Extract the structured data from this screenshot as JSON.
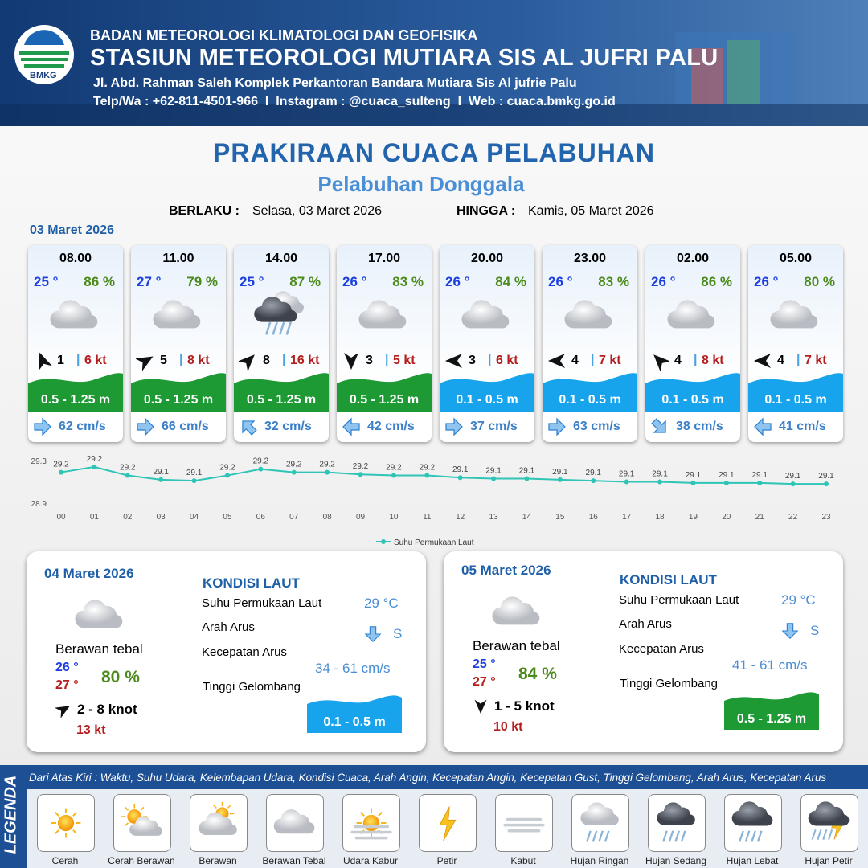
{
  "header": {
    "logo": "BMKG",
    "agency": "BADAN METEOROLOGI KLIMATOLOGI DAN GEOFISIKA",
    "station": "STASIUN METEOROLOGI MUTIARA SIS AL JUFRI PALU",
    "address": "Jl. Abd. Rahman Saleh Komplek Perkantoran Bandara Mutiara Sis Al jufrie Palu",
    "contact": "Telp/Wa : +62-811-4501-966  I  Instagram : @cuaca_sulteng  I  Web : cuaca.bmkg.go.id"
  },
  "title": "PRAKIRAAN CUACA PELABUHAN",
  "subtitle": "Pelabuhan Donggala",
  "validity": {
    "from_label": "BERLAKU :",
    "from": "Selasa, 03 Maret 2026",
    "until_label": "HINGGA :",
    "until": "Kamis, 05 Maret 2026"
  },
  "day1": {
    "date": "03 Maret 2026",
    "cards": [
      {
        "time": "08.00",
        "temp": "25 °",
        "humidity": "86 %",
        "wind": "1",
        "gust": "6 kt",
        "wave": "0.5 - 1.25 m",
        "wave_color": "#1e9a35",
        "current": "62 cm/s"
      },
      {
        "time": "11.00",
        "temp": "27 °",
        "humidity": "79 %",
        "wind": "5",
        "gust": "8 kt",
        "wave": "0.5 - 1.25 m",
        "wave_color": "#1e9a35",
        "current": "66 cm/s"
      },
      {
        "time": "14.00",
        "temp": "25 °",
        "humidity": "87 %",
        "wind": "8",
        "gust": "16 kt",
        "wave": "0.5 - 1.25 m",
        "wave_color": "#1e9a35",
        "current": "32 cm/s"
      },
      {
        "time": "17.00",
        "temp": "26 °",
        "humidity": "83 %",
        "wind": "3",
        "gust": "5 kt",
        "wave": "0.5 - 1.25 m",
        "wave_color": "#1e9a35",
        "current": "42 cm/s"
      },
      {
        "time": "20.00",
        "temp": "26 °",
        "humidity": "84 %",
        "wind": "3",
        "gust": "6 kt",
        "wave": "0.1 - 0.5 m",
        "wave_color": "#18a4ec",
        "current": "37 cm/s"
      },
      {
        "time": "23.00",
        "temp": "26 °",
        "humidity": "83 %",
        "wind": "4",
        "gust": "7 kt",
        "wave": "0.1 - 0.5 m",
        "wave_color": "#18a4ec",
        "current": "63 cm/s"
      },
      {
        "time": "02.00",
        "temp": "26 °",
        "humidity": "86 %",
        "wind": "4",
        "gust": "8 kt",
        "wave": "0.1 - 0.5 m",
        "wave_color": "#18a4ec",
        "current": "38 cm/s"
      },
      {
        "time": "05.00",
        "temp": "26 °",
        "humidity": "80 %",
        "wind": "4",
        "gust": "7 kt",
        "wave": "0.1 - 0.5 m",
        "wave_color": "#18a4ec",
        "current": "41 cm/s"
      }
    ]
  },
  "chart_data": {
    "type": "line",
    "categories": [
      "00",
      "01",
      "02",
      "03",
      "04",
      "05",
      "06",
      "07",
      "08",
      "09",
      "10",
      "11",
      "12",
      "13",
      "14",
      "15",
      "16",
      "17",
      "18",
      "19",
      "20",
      "21",
      "22",
      "23"
    ],
    "series": [
      {
        "name": "Suhu Permukaan Laut",
        "color": "#2ec4b6",
        "values": [
          29.19,
          29.24,
          29.16,
          29.12,
          29.11,
          29.16,
          29.22,
          29.19,
          29.19,
          29.17,
          29.16,
          29.16,
          29.14,
          29.13,
          29.13,
          29.12,
          29.11,
          29.1,
          29.1,
          29.09,
          29.09,
          29.09,
          29.08,
          29.08
        ],
        "value_labels": [
          "29.2",
          "29.2",
          "29.2",
          "29.1",
          "29.1",
          "29.2",
          "29.2",
          "29.2",
          "29.2",
          "29.2",
          "29.2",
          "29.2",
          "29.1",
          "29.1",
          "29.1",
          "29.1",
          "29.1",
          "29.1",
          "29.1",
          "29.1",
          "29.1",
          "29.1",
          "29.1",
          "29.1"
        ]
      }
    ],
    "ylim": [
      28.9,
      29.3
    ],
    "yticks": [
      28.9,
      29.3
    ],
    "legend": "bottom"
  },
  "days": [
    {
      "date": "04 Maret 2026",
      "sea_title": "KONDISI LAUT",
      "condition": "Berawan tebal",
      "temp_min": "26 °",
      "temp_max": "27 °",
      "humidity": "80 %",
      "wind": "2 - 8 knot",
      "gust": "13 kt",
      "sst_label": "Suhu Permukaan Laut",
      "sst": "29 °C",
      "dir_label": "Arah Arus",
      "dir": "S",
      "speed_label": "Kecepatan Arus",
      "speed": "34 - 61 cm/s",
      "wave_label": "Tinggi Gelombang",
      "wave": "0.1 - 0.5 m",
      "wave_color": "#18a4ec"
    },
    {
      "date": "05 Maret 2026",
      "sea_title": "KONDISI LAUT",
      "condition": "Berawan tebal",
      "temp_min": "25 °",
      "temp_max": "27 °",
      "humidity": "84 %",
      "wind": "1 - 5 knot",
      "gust": "10 kt",
      "sst_label": "Suhu Permukaan Laut",
      "sst": "29 °C",
      "dir_label": "Arah Arus",
      "dir": "S",
      "speed_label": "Kecepatan Arus",
      "speed": "41 - 61 cm/s",
      "wave_label": "Tinggi Gelombang",
      "wave": "0.5 - 1.25 m",
      "wave_color": "#1e9a35"
    }
  ],
  "legend": {
    "title": "LEGENDA",
    "description": "Dari Atas Kiri : Waktu, Suhu Udara, Kelembapan Udara, Kondisi Cuaca, Arah Angin, Kecepatan Angin, Kecepatan Gust, Tinggi Gelombang, Arah Arus, Kecepatan Arus",
    "items": [
      "Cerah",
      "Cerah Berawan",
      "Berawan",
      "Berawan Tebal",
      "Udara Kabur",
      "Petir",
      "Kabut",
      "Hujan Ringan",
      "Hujan Sedang",
      "Hujan Lebat",
      "Hujan Petir"
    ]
  }
}
